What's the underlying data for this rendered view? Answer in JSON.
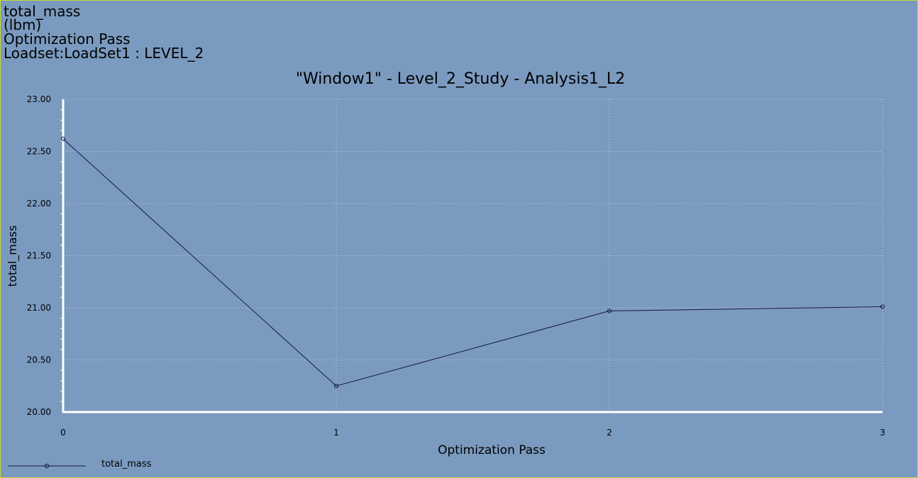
{
  "header": {
    "lines": [
      "total_mass",
      "(lbm)",
      "Optimization Pass",
      "Loadset:LoadSet1 :  LEVEL_2"
    ]
  },
  "colors": {
    "background": "#7b9abf",
    "axis": "#ffffff",
    "grid": "#c4d2e3",
    "series": "#15154a",
    "text": "#000000",
    "frame_border": "#c9d53a"
  },
  "chart_data": {
    "type": "line",
    "title": "\"Window1\" - Level_2_Study - Analysis1_L2",
    "xlabel": "Optimization Pass",
    "ylabel": "total_mass",
    "x": [
      0,
      1,
      2,
      3
    ],
    "x_tick_labels": [
      "0",
      "1",
      "2",
      "3"
    ],
    "xlim": [
      0,
      3
    ],
    "ylim": [
      20.0,
      23.0
    ],
    "y_ticks": [
      20.0,
      20.5,
      21.0,
      21.5,
      22.0,
      22.5,
      23.0
    ],
    "y_tick_labels": [
      "20.00",
      "20.50",
      "21.00",
      "21.50",
      "22.00",
      "22.50",
      "23.00"
    ],
    "grid": true,
    "legend_position": "bottom-left",
    "series": [
      {
        "name": "total_mass",
        "values": [
          22.62,
          20.25,
          20.97,
          21.01
        ],
        "marker": "circle"
      }
    ]
  }
}
